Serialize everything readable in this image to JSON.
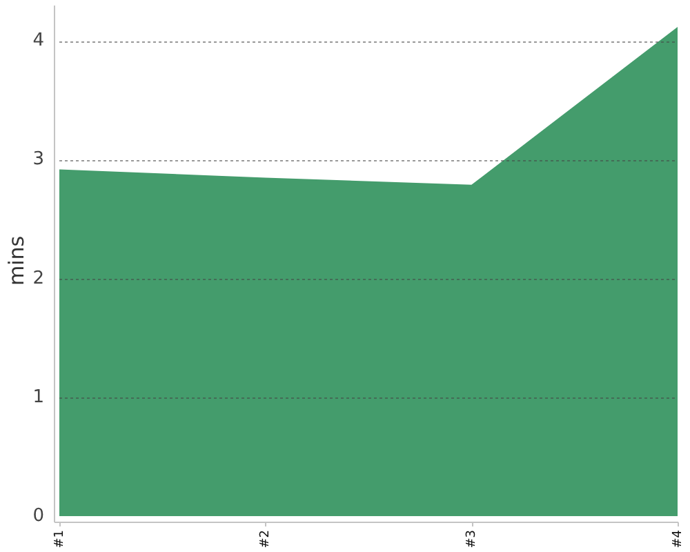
{
  "chart_data": {
    "type": "area",
    "ylabel": "mins",
    "categories": [
      "#1",
      "#2",
      "#3",
      "#4"
    ],
    "values": [
      2.92,
      2.85,
      2.79,
      4.12
    ],
    "color": "#449c6c",
    "ylim": [
      0,
      4.3
    ],
    "yticks": [
      0,
      1,
      2,
      3,
      4
    ],
    "grid": "y"
  }
}
